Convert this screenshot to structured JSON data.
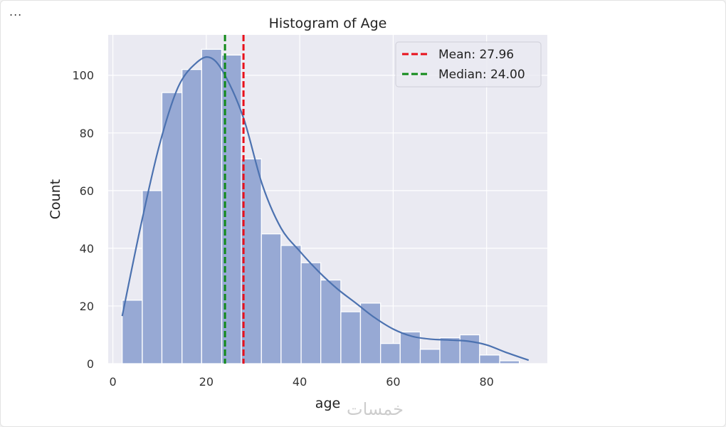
{
  "toolbar": {
    "more_icon": "more-horizontal-icon",
    "more_label": "..."
  },
  "chart_data": {
    "type": "bar",
    "title": "Histogram of Age",
    "xlabel": "age",
    "ylabel": "Count",
    "xlim": [
      -1,
      93
    ],
    "ylim": [
      0,
      114
    ],
    "xticks": [
      0,
      20,
      40,
      60,
      80
    ],
    "yticks": [
      0,
      20,
      40,
      60,
      80,
      100
    ],
    "grid": true,
    "bins": [
      {
        "x0": 2.0,
        "x1": 6.3,
        "count": 22
      },
      {
        "x0": 6.3,
        "x1": 10.5,
        "count": 60
      },
      {
        "x0": 10.5,
        "x1": 14.8,
        "count": 94
      },
      {
        "x0": 14.8,
        "x1": 19.0,
        "count": 102
      },
      {
        "x0": 19.0,
        "x1": 23.3,
        "count": 109
      },
      {
        "x0": 23.3,
        "x1": 27.5,
        "count": 107
      },
      {
        "x0": 27.5,
        "x1": 31.8,
        "count": 71
      },
      {
        "x0": 31.8,
        "x1": 36.0,
        "count": 45
      },
      {
        "x0": 36.0,
        "x1": 40.3,
        "count": 41
      },
      {
        "x0": 40.3,
        "x1": 44.5,
        "count": 35
      },
      {
        "x0": 44.5,
        "x1": 48.8,
        "count": 29
      },
      {
        "x0": 48.8,
        "x1": 53.0,
        "count": 18
      },
      {
        "x0": 53.0,
        "x1": 57.3,
        "count": 21
      },
      {
        "x0": 57.3,
        "x1": 61.5,
        "count": 7
      },
      {
        "x0": 61.5,
        "x1": 65.8,
        "count": 11
      },
      {
        "x0": 65.8,
        "x1": 70.0,
        "count": 5
      },
      {
        "x0": 70.0,
        "x1": 74.3,
        "count": 9
      },
      {
        "x0": 74.3,
        "x1": 78.5,
        "count": 10
      },
      {
        "x0": 78.5,
        "x1": 82.8,
        "count": 3
      },
      {
        "x0": 82.8,
        "x1": 87.0,
        "count": 1
      }
    ],
    "kde": {
      "x": [
        2,
        6,
        10,
        14,
        18,
        21,
        24,
        28,
        32,
        36,
        40,
        44,
        48,
        52,
        56,
        60,
        64,
        68,
        72,
        76,
        80,
        84,
        89
      ],
      "y": [
        16.5,
        48,
        76,
        96,
        104.5,
        106,
        100,
        85,
        62,
        47,
        39,
        32,
        26,
        21,
        16,
        12,
        9.5,
        8.5,
        8.2,
        7.8,
        6.5,
        4,
        1.2
      ]
    },
    "reference_lines": [
      {
        "label": "Mean: 27.96",
        "x": 27.96,
        "color": "#e8101b"
      },
      {
        "label": "Median: 24.00",
        "x": 24.0,
        "color": "#108a18"
      }
    ],
    "legend_position": "upper right",
    "colors": {
      "bars": "#97a9d4",
      "bar_edge": "#ffffff",
      "kde": "#4c72b0",
      "plot_bg": "#eaeaf2",
      "grid": "#ffffff"
    },
    "watermark": "خمسات"
  }
}
